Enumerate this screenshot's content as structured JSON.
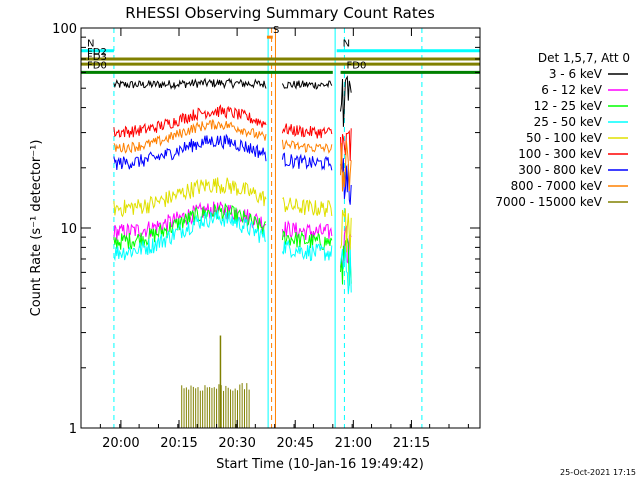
{
  "chart_data": {
    "type": "line",
    "title": "RHESSI Observing Summary Count Rates",
    "xlabel": "Start Time (10-Jan-16 19:49:42)",
    "ylabel": "Count Rate (s⁻¹ detector⁻¹)",
    "yscale": "log",
    "ylim": [
      1,
      100
    ],
    "xlim_minutes": [
      0,
      103
    ],
    "x_ticks": [
      "20:00",
      "20:15",
      "20:30",
      "20:45",
      "21:00",
      "21:15"
    ],
    "y_ticks": [
      "1",
      "10",
      "100"
    ],
    "legend_title": "Det 1,5,7, Att 0",
    "legend_position": "right",
    "series": [
      {
        "name": "3 - 6 keV",
        "color": "#000000",
        "level": 52,
        "amp": 0.02,
        "noise": 0.05
      },
      {
        "name": "6 - 12 keV",
        "color": "#ff00ff",
        "level": 9.5,
        "amp": 0.3,
        "noise": 0.1
      },
      {
        "name": "12 - 25 keV",
        "color": "#00ff00",
        "level": 8.5,
        "amp": 0.42,
        "noise": 0.1
      },
      {
        "name": "25 - 50 keV",
        "color": "#00ffff",
        "level": 7.5,
        "amp": 0.5,
        "noise": 0.1
      },
      {
        "name": "50 - 100 keV",
        "color": "#e0e000",
        "level": 12.5,
        "amp": 0.32,
        "noise": 0.1
      },
      {
        "name": "100 - 300 keV",
        "color": "#ff0000",
        "level": 30,
        "amp": 0.28,
        "noise": 0.07
      },
      {
        "name": "300 - 800 keV",
        "color": "#0000ff",
        "level": 21,
        "amp": 0.3,
        "noise": 0.08
      },
      {
        "name": "800 - 7000 keV",
        "color": "#ff8000",
        "level": 25,
        "amp": 0.32,
        "noise": 0.06
      },
      {
        "name": "7000 - 15000 keV",
        "color": "#808000",
        "level": 1.6,
        "amp": 0.0,
        "noise": 0.0
      }
    ],
    "data_gaps_minutes": [
      [
        0,
        8.5
      ],
      [
        48,
        52
      ],
      [
        65,
        67
      ],
      [
        70,
        103
      ]
    ],
    "annotations": {
      "night_bars": [
        {
          "label": "N",
          "color": "#00ffff",
          "start": 0,
          "end": 8.5,
          "level": 77
        },
        {
          "label": "N",
          "color": "#00ffff",
          "start": 66,
          "end": 103,
          "level": 77
        }
      ],
      "saa_bars": [
        {
          "label": "S",
          "color": "#ff8000",
          "start": 48,
          "end": 49.5,
          "level": 90
        }
      ],
      "flare_bars": [
        {
          "label": "FD2",
          "color": "#808000",
          "start": 0,
          "end": 103,
          "level": 70
        },
        {
          "label": "FD3",
          "color": "#808000",
          "start": 0,
          "end": 103,
          "level": 66
        },
        {
          "label": "FD0",
          "color": "#008000",
          "start": 0,
          "end": 65,
          "level": 60
        },
        {
          "label": "FD0",
          "color": "#008000",
          "start": 67,
          "end": 103,
          "level": 60
        }
      ],
      "vlines": [
        {
          "minute": 8.5,
          "color": "#00ffff",
          "style": "dashed"
        },
        {
          "minute": 48.3,
          "color": "#00ffff",
          "style": "solid"
        },
        {
          "minute": 49.2,
          "color": "#ff8000",
          "style": "dashed"
        },
        {
          "minute": 50.2,
          "color": "#ff8000",
          "style": "solid"
        },
        {
          "minute": 65.6,
          "color": "#00ffff",
          "style": "solid"
        },
        {
          "minute": 68,
          "color": "#00ffff",
          "style": "dashed"
        },
        {
          "minute": 88,
          "color": "#00ffff",
          "style": "dashed"
        }
      ]
    },
    "footer_timestamp": "25-Oct-2021 17:15"
  }
}
